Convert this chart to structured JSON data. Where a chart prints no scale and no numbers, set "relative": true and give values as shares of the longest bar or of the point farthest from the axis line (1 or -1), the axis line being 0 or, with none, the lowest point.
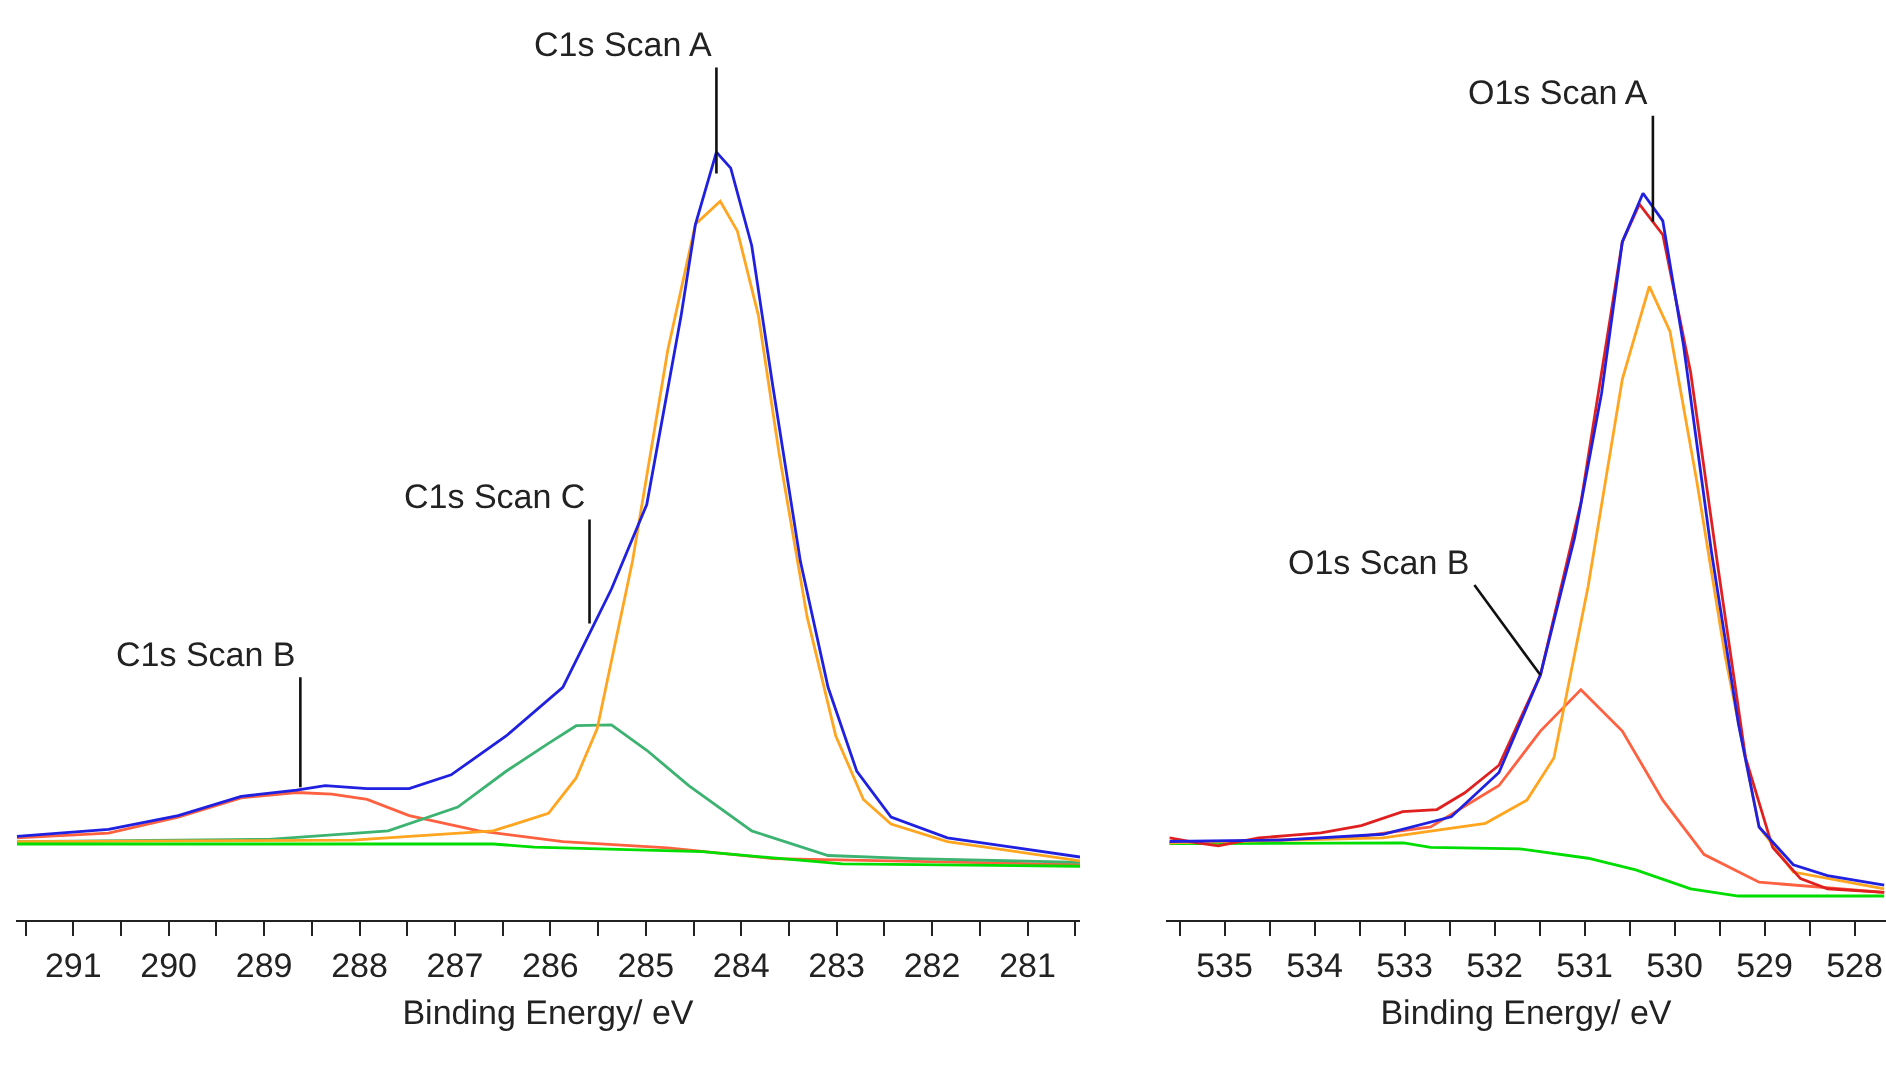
{
  "chart_data": [
    {
      "type": "line",
      "relative": true,
      "xlabel": "Binding Energy/ eV",
      "xlim": [
        291.6,
        280.45
      ],
      "grid": false,
      "marker": "none",
      "line_style": "solid",
      "xticks": [
        {
          "value": 291.5,
          "label": null
        },
        291,
        {
          "value": 290.5,
          "label": null
        },
        290,
        {
          "value": 289.5,
          "label": null
        },
        289,
        {
          "value": 288.5,
          "label": null
        },
        288,
        {
          "value": 287.5,
          "label": null
        },
        287,
        {
          "value": 286.5,
          "label": null
        },
        286,
        {
          "value": 285.5,
          "label": null
        },
        285,
        {
          "value": 284.5,
          "label": null
        },
        284,
        {
          "value": 283.5,
          "label": null
        },
        283,
        {
          "value": 282.5,
          "label": null
        },
        282,
        {
          "value": 281.5,
          "label": null
        },
        281,
        {
          "value": 280.5,
          "label": null
        }
      ],
      "series": [
        {
          "color": "#ff6040",
          "x": [
            291.59,
            290.63,
            289.9,
            289.24,
            288.66,
            288.29,
            287.92,
            287.48,
            286.75,
            285.87,
            284.77,
            283.67,
            280.45
          ],
          "values": [
            0.107,
            0.113,
            0.134,
            0.159,
            0.166,
            0.164,
            0.157,
            0.136,
            0.116,
            0.102,
            0.094,
            0.08,
            0.072
          ]
        },
        {
          "color": "#3cb371",
          "x": [
            291.59,
            288.95,
            287.7,
            286.97,
            286.46,
            286.02,
            285.73,
            285.36,
            284.99,
            284.55,
            283.89,
            283.09,
            282.21,
            280.45
          ],
          "values": [
            0.102,
            0.105,
            0.116,
            0.147,
            0.194,
            0.23,
            0.253,
            0.254,
            0.221,
            0.175,
            0.116,
            0.084,
            0.08,
            0.075
          ]
        },
        {
          "color": "#ffa520",
          "x": [
            291.59,
            288.07,
            286.6,
            286.02,
            285.73,
            285.51,
            285.14,
            284.77,
            284.48,
            284.22,
            284.04,
            283.82,
            283.6,
            283.31,
            283.01,
            282.72,
            282.43,
            281.84,
            280.45
          ],
          "values": [
            0.102,
            0.104,
            0.116,
            0.139,
            0.185,
            0.249,
            0.467,
            0.742,
            0.906,
            0.936,
            0.897,
            0.787,
            0.605,
            0.395,
            0.24,
            0.157,
            0.125,
            0.102,
            0.077
          ]
        },
        {
          "color": "#00dd00",
          "x": [
            291.59,
            286.6,
            286.17,
            284.41,
            282.94,
            280.45
          ],
          "values": [
            0.099,
            0.099,
            0.095,
            0.089,
            0.073,
            0.07
          ]
        },
        {
          "color": "#2020e0",
          "x": [
            291.59,
            290.63,
            289.9,
            289.24,
            288.66,
            288.36,
            287.92,
            287.48,
            287.04,
            286.46,
            285.87,
            285.65,
            285.36,
            284.99,
            284.63,
            284.48,
            284.26,
            284.11,
            283.89,
            283.67,
            283.38,
            283.09,
            282.79,
            282.43,
            281.84,
            281.11,
            280.45
          ],
          "values": [
            0.109,
            0.118,
            0.136,
            0.161,
            0.169,
            0.175,
            0.171,
            0.171,
            0.189,
            0.24,
            0.303,
            0.358,
            0.431,
            0.541,
            0.787,
            0.906,
            1,
            0.979,
            0.878,
            0.696,
            0.467,
            0.303,
            0.194,
            0.134,
            0.107,
            0.094,
            0.082
          ]
        }
      ],
      "annotations": [
        {
          "text": "C1s Scan A",
          "x": 284.26,
          "y": 0.972
        },
        {
          "text": "C1s Scan C",
          "x": 285.59,
          "y": 0.386
        },
        {
          "text": "C1s Scan B",
          "x": 288.62,
          "y": 0.173
        }
      ]
    },
    {
      "type": "line",
      "relative": true,
      "xlabel": "Binding Energy/ eV",
      "xlim": [
        535.65,
        527.65
      ],
      "grid": false,
      "marker": "none",
      "line_style": "solid",
      "xticks": [
        {
          "value": 535.5,
          "label": null
        },
        535,
        {
          "value": 534.5,
          "label": null
        },
        534,
        {
          "value": 533.5,
          "label": null
        },
        533,
        {
          "value": 532.5,
          "label": null
        },
        532,
        {
          "value": 531.5,
          "label": null
        },
        531,
        {
          "value": 530.5,
          "label": null
        },
        530,
        {
          "value": 529.5,
          "label": null
        },
        529,
        {
          "value": 528.5,
          "label": null
        },
        528
      ],
      "series": [
        {
          "color": "#00dd00",
          "x": [
            535.61,
            533.01,
            532.71,
            531.72,
            530.96,
            530.43,
            529.82,
            529.29,
            527.67
          ],
          "values": [
            0.105,
            0.106,
            0.1,
            0.098,
            0.085,
            0.069,
            0.043,
            0.033,
            0.033
          ]
        },
        {
          "color": "#ff6040",
          "x": [
            535.61,
            533.62,
            532.71,
            531.95,
            531.49,
            531.04,
            530.58,
            530.13,
            529.67,
            529.06,
            527.67
          ],
          "values": [
            0.106,
            0.113,
            0.128,
            0.185,
            0.26,
            0.317,
            0.26,
            0.165,
            0.09,
            0.052,
            0.038
          ]
        },
        {
          "color": "#ffa520",
          "x": [
            535.61,
            533.24,
            532.1,
            531.64,
            531.34,
            530.96,
            530.58,
            530.28,
            530.05,
            529.75,
            529.44,
            529.06,
            528.68,
            527.67
          ],
          "values": [
            0.106,
            0.113,
            0.133,
            0.165,
            0.223,
            0.459,
            0.744,
            0.872,
            0.81,
            0.602,
            0.365,
            0.128,
            0.066,
            0.043
          ]
        },
        {
          "color": "#e02020",
          "x": [
            535.61,
            535.3,
            535.07,
            534.62,
            534.31,
            533.93,
            533.48,
            533.02,
            532.64,
            532.33,
            531.95,
            531.49,
            531.04,
            530.58,
            530.39,
            530.13,
            529.82,
            529.52,
            529.21,
            528.91,
            528.6,
            528.3,
            527.67
          ],
          "values": [
            0.113,
            0.106,
            0.102,
            0.113,
            0.116,
            0.12,
            0.13,
            0.149,
            0.152,
            0.175,
            0.213,
            0.337,
            0.574,
            0.933,
            0.985,
            0.943,
            0.753,
            0.488,
            0.223,
            0.1,
            0.057,
            0.043,
            0.038
          ]
        },
        {
          "color": "#2020e0",
          "x": [
            535.61,
            534.38,
            533.24,
            532.48,
            531.95,
            531.49,
            531.11,
            530.81,
            530.58,
            530.35,
            530.13,
            529.9,
            529.59,
            529.29,
            529.06,
            528.68,
            528.3,
            527.67
          ],
          "values": [
            0.108,
            0.11,
            0.118,
            0.142,
            0.203,
            0.337,
            0.526,
            0.725,
            0.933,
            1,
            0.962,
            0.791,
            0.507,
            0.27,
            0.128,
            0.076,
            0.061,
            0.048
          ]
        }
      ],
      "annotations": [
        {
          "text": "O1s Scan A",
          "x": 530.24,
          "y": 0.961
        },
        {
          "text": "O1s Scan B",
          "x": 531.49,
          "y": 0.337
        }
      ]
    }
  ]
}
